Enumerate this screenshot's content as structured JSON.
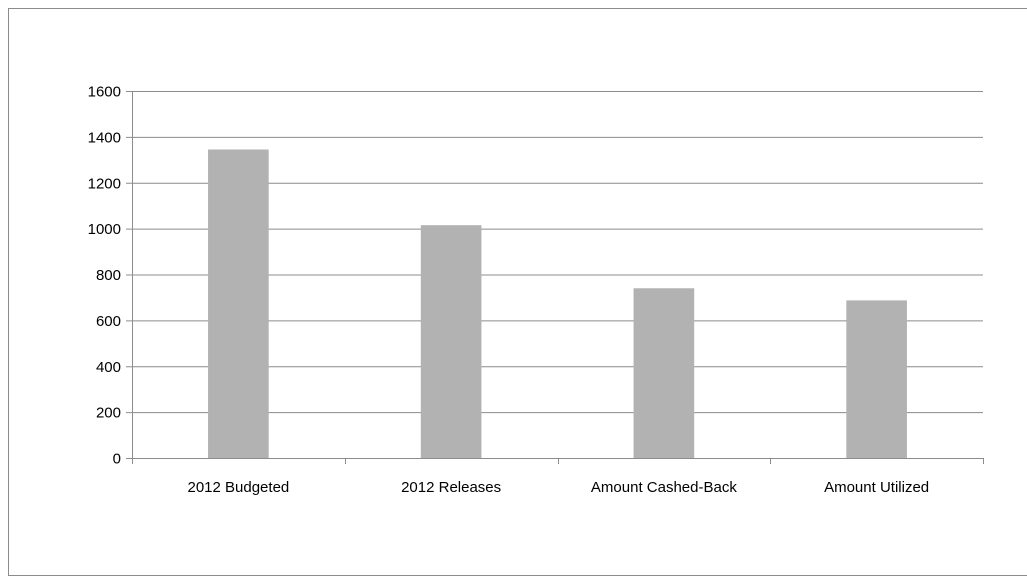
{
  "chart_data": {
    "type": "bar",
    "title": "",
    "xlabel": "",
    "ylabel": "",
    "categories": [
      "2012 Budgeted",
      "2012 Releases",
      "Amount Cashed-Back",
      "Amount Utilized"
    ],
    "values": [
      1345,
      1015,
      740,
      687
    ],
    "ylim": [
      0,
      1600
    ],
    "yticks": [
      0,
      200,
      400,
      600,
      800,
      1000,
      1200,
      1400,
      1600
    ],
    "grid": true,
    "legend": "none",
    "bar_color": "#b2b2b2",
    "grid_color": "#8c8c8c"
  }
}
